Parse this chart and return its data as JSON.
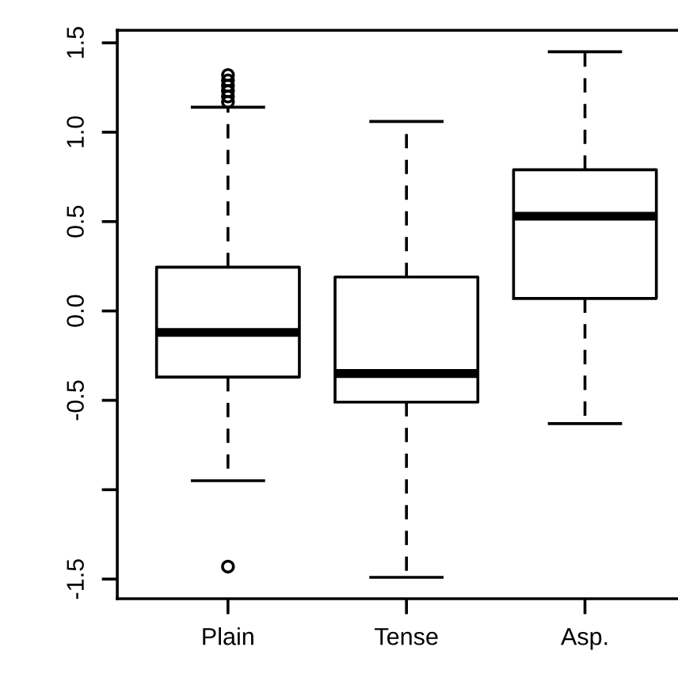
{
  "chart_data": {
    "type": "box",
    "categories": [
      "Plain",
      "Tense",
      "Asp."
    ],
    "boxes": [
      {
        "low": -0.95,
        "q1": -0.37,
        "median": -0.12,
        "q3": 0.245,
        "high": 1.14,
        "outliers": [
          1.17,
          1.2,
          1.23,
          1.26,
          1.29,
          1.32,
          -1.43
        ]
      },
      {
        "low": -1.49,
        "q1": -0.51,
        "median": -0.35,
        "q3": 0.19,
        "high": 1.06
      },
      {
        "low": -0.63,
        "q1": 0.07,
        "median": 0.53,
        "q3": 0.79,
        "high": 1.45
      }
    ],
    "ylim": [
      -1.61,
      1.57
    ],
    "yticks": [
      -1.5,
      {
        "value": -1.0,
        "label": null
      },
      -0.5,
      {
        "value": 0,
        "label": "0.0"
      },
      0.5,
      {
        "value": 1,
        "label": "1.0"
      },
      1.5
    ],
    "grid": false,
    "legend": false
  }
}
